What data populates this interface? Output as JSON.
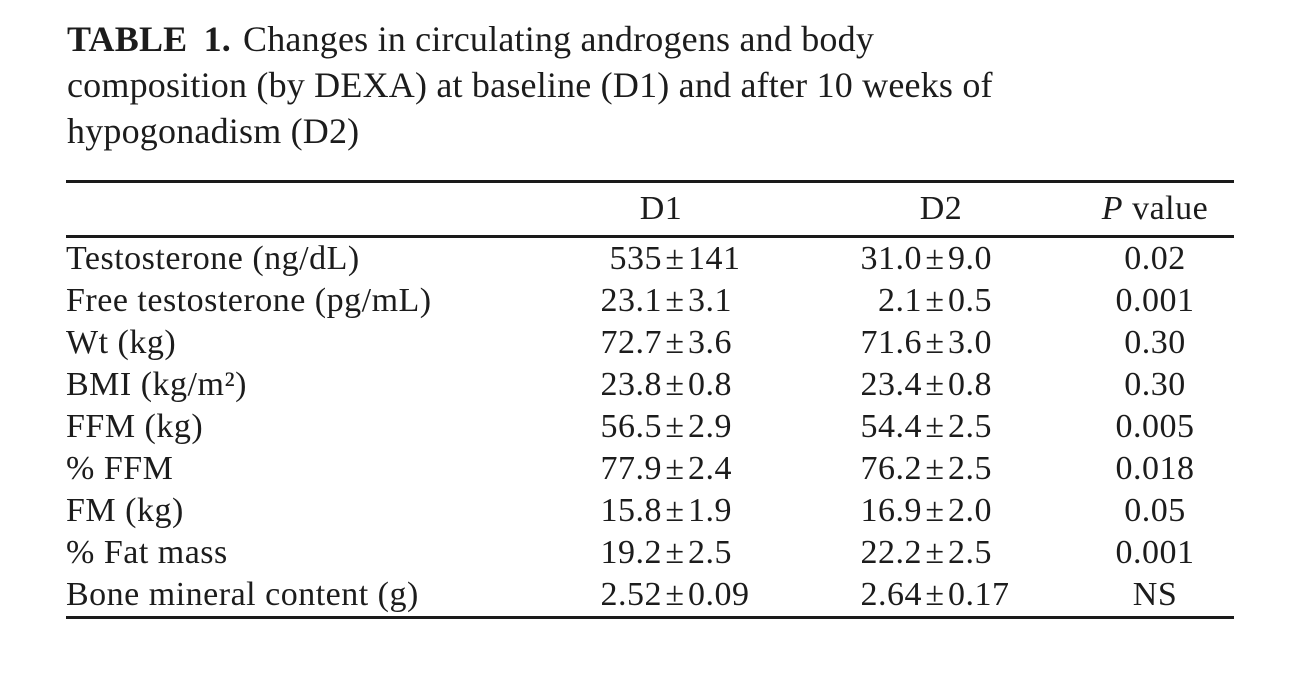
{
  "title": {
    "label": "TABLE 1.",
    "line1": "Changes in circulating androgens and body",
    "line2": "composition (by DEXA) at baseline (D1) and after 10 weeks of",
    "line3": "hypogonadism (D2)"
  },
  "table": {
    "pm": "±",
    "header": {
      "d1": "D1",
      "d2": "D2",
      "p_italic": "P",
      "p_rest": "value"
    },
    "rows": [
      {
        "label": "Testosterone (ng/dL)",
        "d1": "535 ± 141",
        "d2": "31.0 ± 9.0",
        "p": "0.02"
      },
      {
        "label": "Free testosterone (pg/mL)",
        "d1": "23.1 ± 3.1",
        "d2": "2.1 ± 0.5",
        "p": "0.001"
      },
      {
        "label": "Wt (kg)",
        "d1": "72.7 ± 3.6",
        "d2": "71.6 ± 3.0",
        "p": "0.30"
      },
      {
        "label": "BMI (kg/m²)",
        "d1": "23.8 ± 0.8",
        "d2": "23.4 ± 0.8",
        "p": "0.30"
      },
      {
        "label": "FFM (kg)",
        "d1": "56.5 ± 2.9",
        "d2": "54.4 ± 2.5",
        "p": "0.005"
      },
      {
        "label": "% FFM",
        "d1": "77.9 ± 2.4",
        "d2": "76.2 ± 2.5",
        "p": "0.018"
      },
      {
        "label": "FM (kg)",
        "d1": "15.8 ± 1.9",
        "d2": "16.9 ± 2.0",
        "p": "0.05"
      },
      {
        "label": "% Fat mass",
        "d1": "19.2 ± 2.5",
        "d2": "22.2 ± 2.5",
        "p": "0.001"
      },
      {
        "label": "Bone mineral content (g)",
        "d1": "2.52 ± 0.09",
        "d2": "2.64 ± 0.17",
        "p": "NS"
      }
    ]
  }
}
